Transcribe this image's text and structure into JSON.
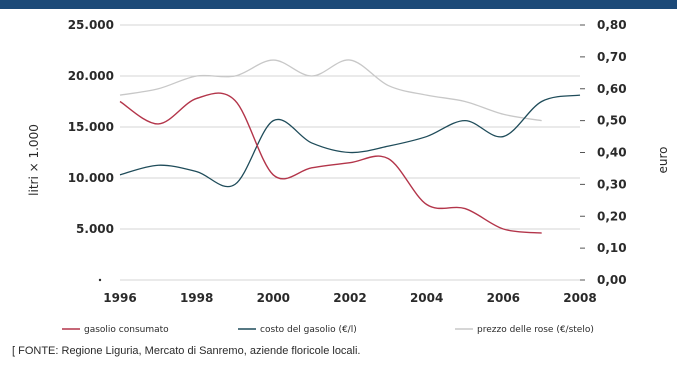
{
  "chart_data": {
    "type": "line",
    "xlabel": "",
    "ylabel_left": "litri × 1.000",
    "ylabel_right": "euro",
    "x": [
      1996,
      1997,
      1998,
      1999,
      2000,
      2001,
      2002,
      2003,
      2004,
      2005,
      2006,
      2007,
      2008
    ],
    "x_ticks": [
      "1996",
      "1998",
      "2000",
      "2002",
      "2004",
      "2006",
      "2008"
    ],
    "x_tick_values": [
      1996,
      1998,
      2000,
      2002,
      2004,
      2006,
      2008
    ],
    "xlim": [
      1996,
      2008
    ],
    "ylim_left": [
      0,
      25000
    ],
    "ylim_right": [
      0,
      0.8
    ],
    "left_ticks": [
      "",
      "5.000",
      "10.000",
      "15.000",
      "20.000",
      "25.000"
    ],
    "left_tick_values": [
      0,
      5000,
      10000,
      15000,
      20000,
      25000
    ],
    "right_ticks": [
      "0,00",
      "0,10",
      "0,20",
      "0,30",
      "0,40",
      "0,50",
      "0,60",
      "0,70",
      "0,80"
    ],
    "right_tick_values": [
      0,
      0.1,
      0.2,
      0.3,
      0.4,
      0.5,
      0.6,
      0.7,
      0.8
    ],
    "grid": true,
    "legend_position": "bottom",
    "series": [
      {
        "name": "gasolio consumato",
        "axis": "left",
        "color": "#b3354a",
        "x": [
          1996,
          1997,
          1998,
          1999,
          2000,
          2001,
          2002,
          2003,
          2004,
          2005,
          2006,
          2007
        ],
        "values": [
          17500,
          15300,
          17800,
          17600,
          10300,
          11000,
          11500,
          11900,
          7400,
          7000,
          5000,
          4600
        ]
      },
      {
        "name": "costo del gasolio (€/l)",
        "axis": "right",
        "color": "#1f4c5a",
        "x": [
          1996,
          1997,
          1998,
          1999,
          2000,
          2001,
          2002,
          2003,
          2004,
          2005,
          2006,
          2007,
          2008
        ],
        "values": [
          0.33,
          0.36,
          0.34,
          0.3,
          0.5,
          0.43,
          0.4,
          0.42,
          0.45,
          0.5,
          0.45,
          0.56,
          0.58
        ]
      },
      {
        "name": "prezzo delle rose (€/stelo)",
        "axis": "right",
        "color": "#c8c8c8",
        "x": [
          1996,
          1997,
          1998,
          1999,
          2000,
          2001,
          2002,
          2003,
          2004,
          2005,
          2006,
          2007
        ],
        "values": [
          0.58,
          0.6,
          0.64,
          0.64,
          0.69,
          0.64,
          0.69,
          0.61,
          0.58,
          0.56,
          0.52,
          0.5
        ]
      }
    ]
  },
  "source_text": "[ FONTE: Regione Liguria, Mercato di Sanremo, aziende floricole locali."
}
